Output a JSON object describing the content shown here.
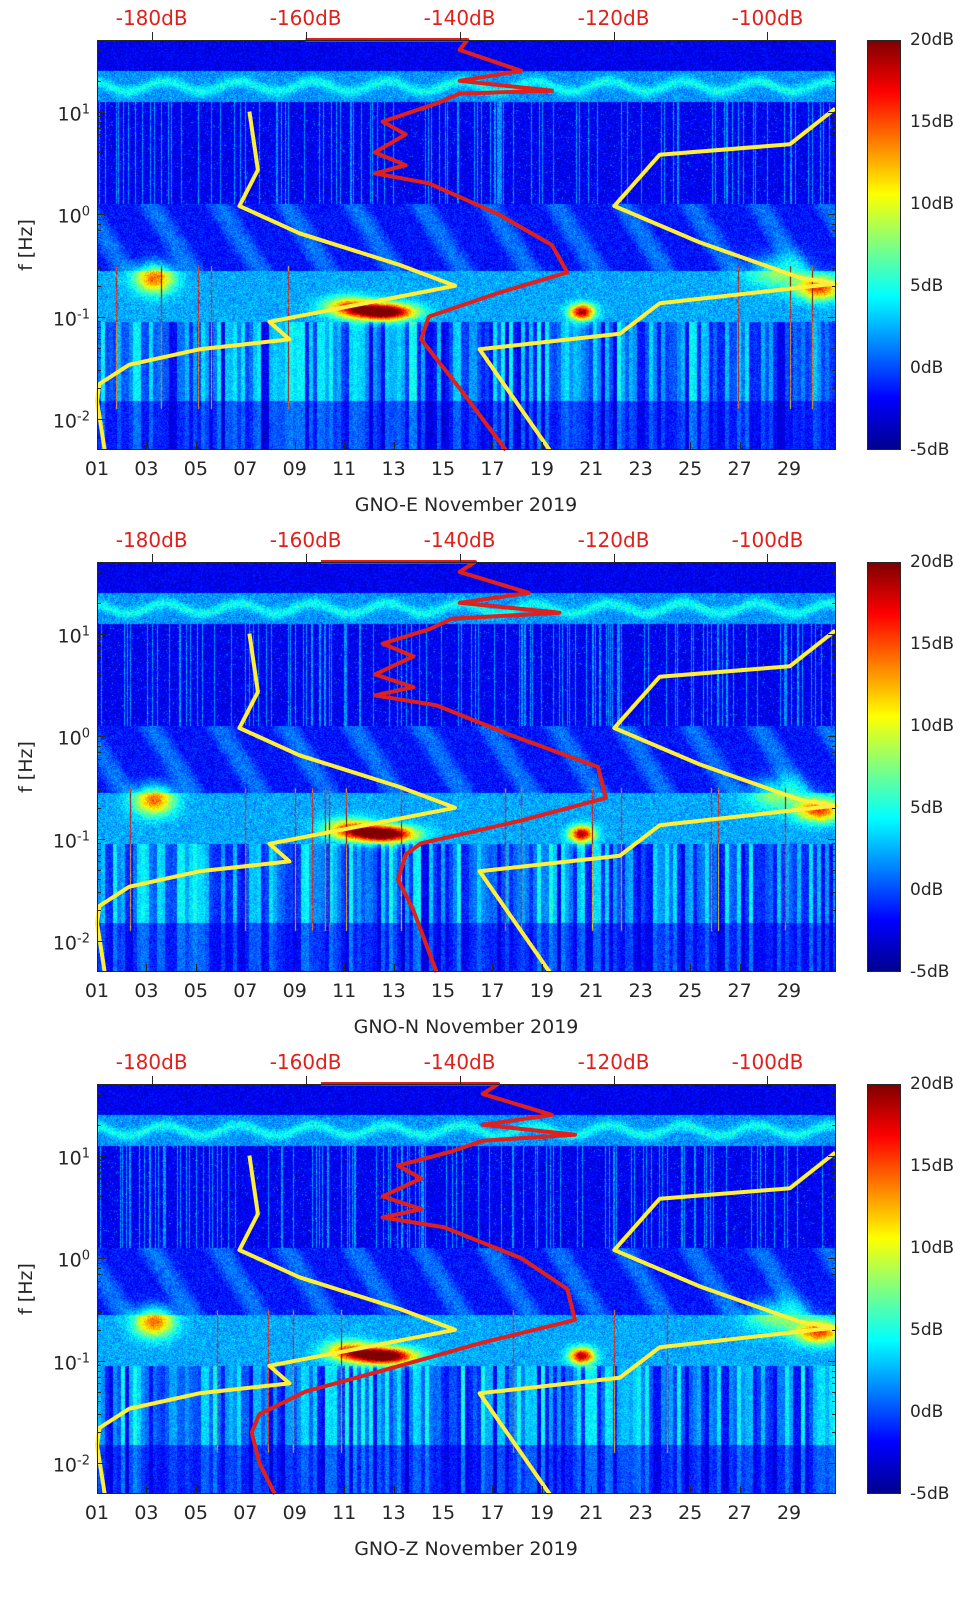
{
  "chart_data": [
    {
      "type": "heatmap",
      "title": "",
      "xlabel": "GNO-E November 2019",
      "ylabel": "f [Hz]",
      "xlim_days": [
        1,
        30.9
      ],
      "ylim_hz": [
        0.005,
        50
      ],
      "yscale": "log",
      "x_ticks": [
        "01",
        "03",
        "05",
        "07",
        "09",
        "11",
        "13",
        "15",
        "17",
        "19",
        "21",
        "23",
        "25",
        "27",
        "29"
      ],
      "y_ticks": [
        {
          "base": "10",
          "exp": "-2",
          "value": 0.01
        },
        {
          "base": "10",
          "exp": "-1",
          "value": 0.1
        },
        {
          "base": "10",
          "exp": "0",
          "value": 1
        },
        {
          "base": "10",
          "exp": "1",
          "value": 10
        }
      ],
      "top_axis": {
        "color": "#e0201c",
        "lim_db": [
          -187.1,
          -91.1
        ],
        "ticks": [
          "-180dB",
          "-160dB",
          "-140dB",
          "-120dB",
          "-100dB"
        ],
        "tick_values": [
          -180,
          -160,
          -140,
          -120,
          -100
        ]
      },
      "colorbar": {
        "lim": [
          -5,
          20
        ],
        "ticks": [
          "20dB",
          "15dB",
          "10dB",
          "5dB",
          "0dB",
          "-5dB"
        ],
        "tick_values": [
          20,
          15,
          10,
          5,
          0,
          -5
        ],
        "colormap": "jet"
      },
      "series": [
        {
          "name": "noise-model-low",
          "color": "#ffef3a",
          "points_db_hz": [
            [
              -167.3,
              10
            ],
            [
              -166.2,
              2.7
            ],
            [
              -168.6,
              1.2
            ],
            [
              -160.8,
              0.65
            ],
            [
              -147.8,
              0.32
            ],
            [
              -140.6,
              0.2
            ],
            [
              -164.7,
              0.089
            ],
            [
              -162.1,
              0.06
            ],
            [
              -173.8,
              0.048
            ],
            [
              -182.9,
              0.034
            ],
            [
              -186.8,
              0.022
            ],
            [
              -187.1,
              0.015
            ],
            [
              -186.1,
              0.005
            ]
          ]
        },
        {
          "name": "noise-model-high",
          "color": "#ffef3a",
          "points_db_hz": [
            [
              -91.2,
              10.7
            ],
            [
              -97.1,
              4.8
            ],
            [
              -114,
              3.8
            ],
            [
              -119.9,
              1.2
            ],
            [
              -108.8,
              0.53
            ],
            [
              -95.8,
              0.24
            ],
            [
              -91.2,
              0.21
            ],
            [
              -114,
              0.135
            ],
            [
              -119.2,
              0.068
            ],
            [
              -137.4,
              0.048
            ],
            [
              -128.3,
              0.005
            ]
          ]
        },
        {
          "name": "station-psd",
          "color": "#e0201c",
          "points_db_hz": [
            [
              -160,
              50
            ],
            [
              -139,
              50
            ],
            [
              -140,
              40
            ],
            [
              -132,
              25
            ],
            [
              -140,
              20
            ],
            [
              -128,
              16
            ],
            [
              -140,
              15
            ],
            [
              -143,
              12
            ],
            [
              -150,
              8
            ],
            [
              -147,
              6
            ],
            [
              -151,
              4
            ],
            [
              -147,
              3
            ],
            [
              -151,
              2.5
            ],
            [
              -144,
              2
            ],
            [
              -135,
              1
            ],
            [
              -128,
              0.5
            ],
            [
              -126,
              0.27
            ],
            [
              -135,
              0.17
            ],
            [
              -144,
              0.1
            ],
            [
              -145,
              0.06
            ],
            [
              -140,
              0.02
            ],
            [
              -134,
              0.005
            ]
          ]
        }
      ]
    },
    {
      "type": "heatmap",
      "title": "",
      "xlabel": "GNO-N November 2019",
      "ylabel": "f [Hz]",
      "xlim_days": [
        1,
        30.9
      ],
      "ylim_hz": [
        0.005,
        50
      ],
      "yscale": "log",
      "x_ticks": [
        "01",
        "03",
        "05",
        "07",
        "09",
        "11",
        "13",
        "15",
        "17",
        "19",
        "21",
        "23",
        "25",
        "27",
        "29"
      ],
      "y_ticks": [
        {
          "base": "10",
          "exp": "-2",
          "value": 0.01
        },
        {
          "base": "10",
          "exp": "-1",
          "value": 0.1
        },
        {
          "base": "10",
          "exp": "0",
          "value": 1
        },
        {
          "base": "10",
          "exp": "1",
          "value": 10
        }
      ],
      "top_axis": {
        "color": "#e0201c",
        "lim_db": [
          -187.1,
          -91.1
        ],
        "ticks": [
          "-180dB",
          "-160dB",
          "-140dB",
          "-120dB",
          "-100dB"
        ],
        "tick_values": [
          -180,
          -160,
          -140,
          -120,
          -100
        ]
      },
      "colorbar": {
        "lim": [
          -5,
          20
        ],
        "ticks": [
          "20dB",
          "15dB",
          "10dB",
          "5dB",
          "0dB",
          "-5dB"
        ],
        "tick_values": [
          20,
          15,
          10,
          5,
          0,
          -5
        ],
        "colormap": "jet"
      },
      "series": [
        {
          "name": "noise-model-low",
          "color": "#ffef3a",
          "points_db_hz": [
            [
              -167.3,
              10
            ],
            [
              -166.2,
              2.7
            ],
            [
              -168.6,
              1.2
            ],
            [
              -160.8,
              0.65
            ],
            [
              -147.8,
              0.32
            ],
            [
              -140.6,
              0.2
            ],
            [
              -164.7,
              0.089
            ],
            [
              -162.1,
              0.06
            ],
            [
              -173.8,
              0.048
            ],
            [
              -182.9,
              0.034
            ],
            [
              -186.8,
              0.022
            ],
            [
              -187.1,
              0.015
            ],
            [
              -186.1,
              0.005
            ]
          ]
        },
        {
          "name": "noise-model-high",
          "color": "#ffef3a",
          "points_db_hz": [
            [
              -91.2,
              10.7
            ],
            [
              -97.1,
              4.8
            ],
            [
              -114,
              3.8
            ],
            [
              -119.9,
              1.2
            ],
            [
              -108.8,
              0.53
            ],
            [
              -95.8,
              0.24
            ],
            [
              -91.2,
              0.21
            ],
            [
              -114,
              0.135
            ],
            [
              -119.2,
              0.068
            ],
            [
              -137.4,
              0.048
            ],
            [
              -128.3,
              0.005
            ]
          ]
        },
        {
          "name": "station-psd",
          "color": "#e0201c",
          "points_db_hz": [
            [
              -158,
              50
            ],
            [
              -138,
              50
            ],
            [
              -140,
              40
            ],
            [
              -131,
              25
            ],
            [
              -140,
              20
            ],
            [
              -127,
              16
            ],
            [
              -141,
              14
            ],
            [
              -144,
              11
            ],
            [
              -150,
              8
            ],
            [
              -146,
              6
            ],
            [
              -151,
              4
            ],
            [
              -146,
              3
            ],
            [
              -151,
              2.5
            ],
            [
              -143,
              2
            ],
            [
              -133,
              1
            ],
            [
              -122,
              0.5
            ],
            [
              -121,
              0.25
            ],
            [
              -132,
              0.15
            ],
            [
              -145,
              0.09
            ],
            [
              -147,
              0.07
            ],
            [
              -148,
              0.04
            ],
            [
              -146,
              0.02
            ],
            [
              -143,
              0.005
            ]
          ]
        }
      ]
    },
    {
      "type": "heatmap",
      "title": "",
      "xlabel": "GNO-Z November 2019",
      "ylabel": "f [Hz]",
      "xlim_days": [
        1,
        30.9
      ],
      "ylim_hz": [
        0.005,
        50
      ],
      "yscale": "log",
      "x_ticks": [
        "01",
        "03",
        "05",
        "07",
        "09",
        "11",
        "13",
        "15",
        "17",
        "19",
        "21",
        "23",
        "25",
        "27",
        "29"
      ],
      "y_ticks": [
        {
          "base": "10",
          "exp": "-2",
          "value": 0.01
        },
        {
          "base": "10",
          "exp": "-1",
          "value": 0.1
        },
        {
          "base": "10",
          "exp": "0",
          "value": 1
        },
        {
          "base": "10",
          "exp": "1",
          "value": 10
        }
      ],
      "top_axis": {
        "color": "#e0201c",
        "lim_db": [
          -187.1,
          -91.1
        ],
        "ticks": [
          "-180dB",
          "-160dB",
          "-140dB",
          "-120dB",
          "-100dB"
        ],
        "tick_values": [
          -180,
          -160,
          -140,
          -120,
          -100
        ]
      },
      "colorbar": {
        "lim": [
          -5,
          20
        ],
        "ticks": [
          "20dB",
          "15dB",
          "10dB",
          "5dB",
          "0dB",
          "-5dB"
        ],
        "tick_values": [
          20,
          15,
          10,
          5,
          0,
          -5
        ],
        "colormap": "jet"
      },
      "series": [
        {
          "name": "noise-model-low",
          "color": "#ffef3a",
          "points_db_hz": [
            [
              -167.3,
              10
            ],
            [
              -166.2,
              2.7
            ],
            [
              -168.6,
              1.2
            ],
            [
              -160.8,
              0.65
            ],
            [
              -147.8,
              0.32
            ],
            [
              -140.6,
              0.2
            ],
            [
              -164.7,
              0.089
            ],
            [
              -162.1,
              0.06
            ],
            [
              -173.8,
              0.048
            ],
            [
              -182.9,
              0.034
            ],
            [
              -186.8,
              0.022
            ],
            [
              -187.1,
              0.015
            ],
            [
              -186.1,
              0.005
            ]
          ]
        },
        {
          "name": "noise-model-high",
          "color": "#ffef3a",
          "points_db_hz": [
            [
              -91.2,
              10.7
            ],
            [
              -97.1,
              4.8
            ],
            [
              -114,
              3.8
            ],
            [
              -119.9,
              1.2
            ],
            [
              -108.8,
              0.53
            ],
            [
              -95.8,
              0.24
            ],
            [
              -91.2,
              0.21
            ],
            [
              -114,
              0.135
            ],
            [
              -119.2,
              0.068
            ],
            [
              -137.4,
              0.048
            ],
            [
              -128.3,
              0.005
            ]
          ]
        },
        {
          "name": "station-psd",
          "color": "#e0201c",
          "points_db_hz": [
            [
              -158,
              50
            ],
            [
              -135,
              50
            ],
            [
              -137,
              40
            ],
            [
              -128,
              25
            ],
            [
              -137,
              20
            ],
            [
              -125,
              16
            ],
            [
              -137,
              14
            ],
            [
              -141,
              11
            ],
            [
              -148,
              8
            ],
            [
              -145,
              6
            ],
            [
              -150,
              4
            ],
            [
              -145,
              3
            ],
            [
              -150,
              2.5
            ],
            [
              -142,
              2
            ],
            [
              -132,
              1
            ],
            [
              -126,
              0.5
            ],
            [
              -125,
              0.25
            ],
            [
              -137,
              0.15
            ],
            [
              -150,
              0.08
            ],
            [
              -160,
              0.05
            ],
            [
              -166,
              0.03
            ],
            [
              -167,
              0.02
            ],
            [
              -166,
              0.01
            ],
            [
              -164,
              0.005
            ]
          ]
        }
      ]
    }
  ]
}
